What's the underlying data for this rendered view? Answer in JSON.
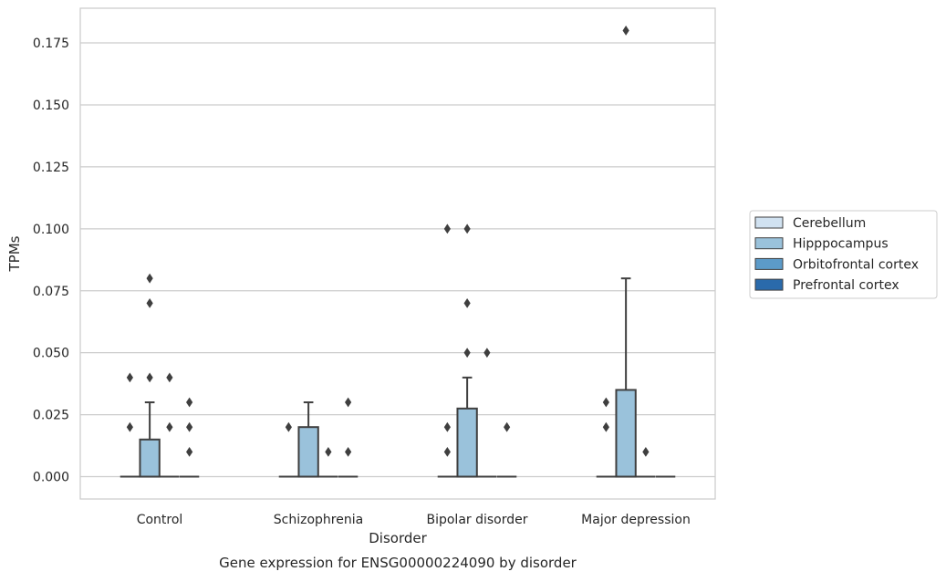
{
  "chart_data": {
    "type": "box",
    "title": "Gene expression for ENSG00000224090 by disorder",
    "xlabel": "Disorder",
    "ylabel": "TPMs",
    "ylim": [
      -0.009,
      0.189
    ],
    "yticks": [
      0.0,
      0.025,
      0.05,
      0.075,
      0.1,
      0.125,
      0.15,
      0.175
    ],
    "ytick_labels": [
      "0.000",
      "0.025",
      "0.050",
      "0.075",
      "0.100",
      "0.125",
      "0.150",
      "0.175"
    ],
    "categories": [
      "Control",
      "Schizophrenia",
      "Bipolar disorder",
      "Major depression"
    ],
    "grid": true,
    "legend_position": "right",
    "series": [
      {
        "name": "Cerebellum",
        "color": "#d1e2f1",
        "boxes": [
          {
            "q1": 0,
            "median": 0,
            "q3": 0,
            "whisker_low": 0,
            "whisker_high": 0,
            "outliers": [
              0.02,
              0.04
            ]
          },
          {
            "q1": 0,
            "median": 0,
            "q3": 0,
            "whisker_low": 0,
            "whisker_high": 0,
            "outliers": [
              0.02
            ]
          },
          {
            "q1": 0,
            "median": 0,
            "q3": 0,
            "whisker_low": 0,
            "whisker_high": 0,
            "outliers": [
              0.01,
              0.02,
              0.1
            ]
          },
          {
            "q1": 0,
            "median": 0,
            "q3": 0,
            "whisker_low": 0,
            "whisker_high": 0,
            "outliers": [
              0.02,
              0.03
            ]
          }
        ]
      },
      {
        "name": "Hipppocampus",
        "color": "#9ac2db",
        "boxes": [
          {
            "q1": 0,
            "median": 0,
            "q3": 0.015,
            "whisker_low": 0,
            "whisker_high": 0.03,
            "outliers": [
              0.04,
              0.07,
              0.08
            ]
          },
          {
            "q1": 0,
            "median": 0,
            "q3": 0.02,
            "whisker_low": 0,
            "whisker_high": 0.03,
            "outliers": []
          },
          {
            "q1": 0,
            "median": 0,
            "q3": 0.0275,
            "whisker_low": 0,
            "whisker_high": 0.04,
            "outliers": [
              0.05,
              0.07,
              0.1
            ]
          },
          {
            "q1": 0,
            "median": 0,
            "q3": 0.035,
            "whisker_low": 0,
            "whisker_high": 0.08,
            "outliers": [
              0.18
            ]
          }
        ]
      },
      {
        "name": "Orbitofrontal cortex",
        "color": "#5c9bc9",
        "boxes": [
          {
            "q1": 0,
            "median": 0,
            "q3": 0,
            "whisker_low": 0,
            "whisker_high": 0,
            "outliers": [
              0.02,
              0.04
            ]
          },
          {
            "q1": 0,
            "median": 0,
            "q3": 0,
            "whisker_low": 0,
            "whisker_high": 0,
            "outliers": [
              0.01
            ]
          },
          {
            "q1": 0,
            "median": 0,
            "q3": 0,
            "whisker_low": 0,
            "whisker_high": 0,
            "outliers": [
              0.05
            ]
          },
          {
            "q1": 0,
            "median": 0,
            "q3": 0,
            "whisker_low": 0,
            "whisker_high": 0,
            "outliers": [
              0.01
            ]
          }
        ]
      },
      {
        "name": "Prefrontal cortex",
        "color": "#2a6aab",
        "boxes": [
          {
            "q1": 0,
            "median": 0,
            "q3": 0,
            "whisker_low": 0,
            "whisker_high": 0,
            "outliers": [
              0.01,
              0.02,
              0.03
            ]
          },
          {
            "q1": 0,
            "median": 0,
            "q3": 0,
            "whisker_low": 0,
            "whisker_high": 0,
            "outliers": [
              0.01,
              0.03
            ]
          },
          {
            "q1": 0,
            "median": 0,
            "q3": 0,
            "whisker_low": 0,
            "whisker_high": 0,
            "outliers": [
              0.02
            ]
          },
          {
            "q1": 0,
            "median": 0,
            "q3": 0,
            "whisker_low": 0,
            "whisker_high": 0,
            "outliers": []
          }
        ]
      }
    ]
  }
}
